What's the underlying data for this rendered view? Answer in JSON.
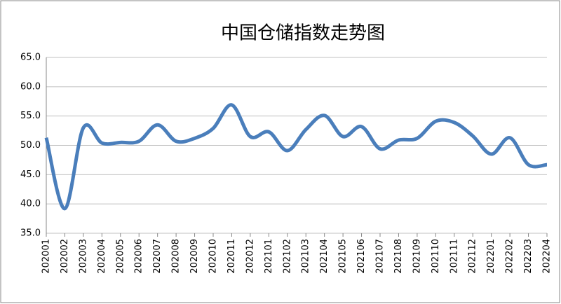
{
  "chart_data": {
    "type": "line",
    "title": "中国仓储指数走势图",
    "categories": [
      "202001",
      "202002",
      "202003",
      "202004",
      "202005",
      "202006",
      "202007",
      "202008",
      "202009",
      "202010",
      "202011",
      "202012",
      "202101",
      "202102",
      "202103",
      "202104",
      "202105",
      "202106",
      "202107",
      "202108",
      "202109",
      "202110",
      "202111",
      "202112",
      "202201",
      "202202",
      "202203",
      "202204"
    ],
    "values": [
      51.3,
      39.2,
      53.0,
      50.4,
      50.5,
      50.7,
      53.5,
      50.7,
      51.2,
      52.9,
      56.9,
      51.5,
      52.3,
      49.1,
      52.7,
      55.1,
      51.5,
      53.2,
      49.4,
      50.9,
      51.2,
      54.1,
      53.9,
      51.6,
      48.5,
      51.3,
      46.7,
      46.7
    ],
    "color": "#4a7ebb",
    "ylim": [
      35,
      65
    ],
    "yticks": [
      {
        "value": 35,
        "label": "35.0"
      },
      {
        "value": 40,
        "label": "40.0"
      },
      {
        "value": 45,
        "label": "45.0"
      },
      {
        "value": 50,
        "label": "50.0"
      },
      {
        "value": 55,
        "label": "55.0"
      },
      {
        "value": 60,
        "label": "60.0"
      },
      {
        "value": 65,
        "label": "65.0"
      }
    ],
    "grid": true
  }
}
